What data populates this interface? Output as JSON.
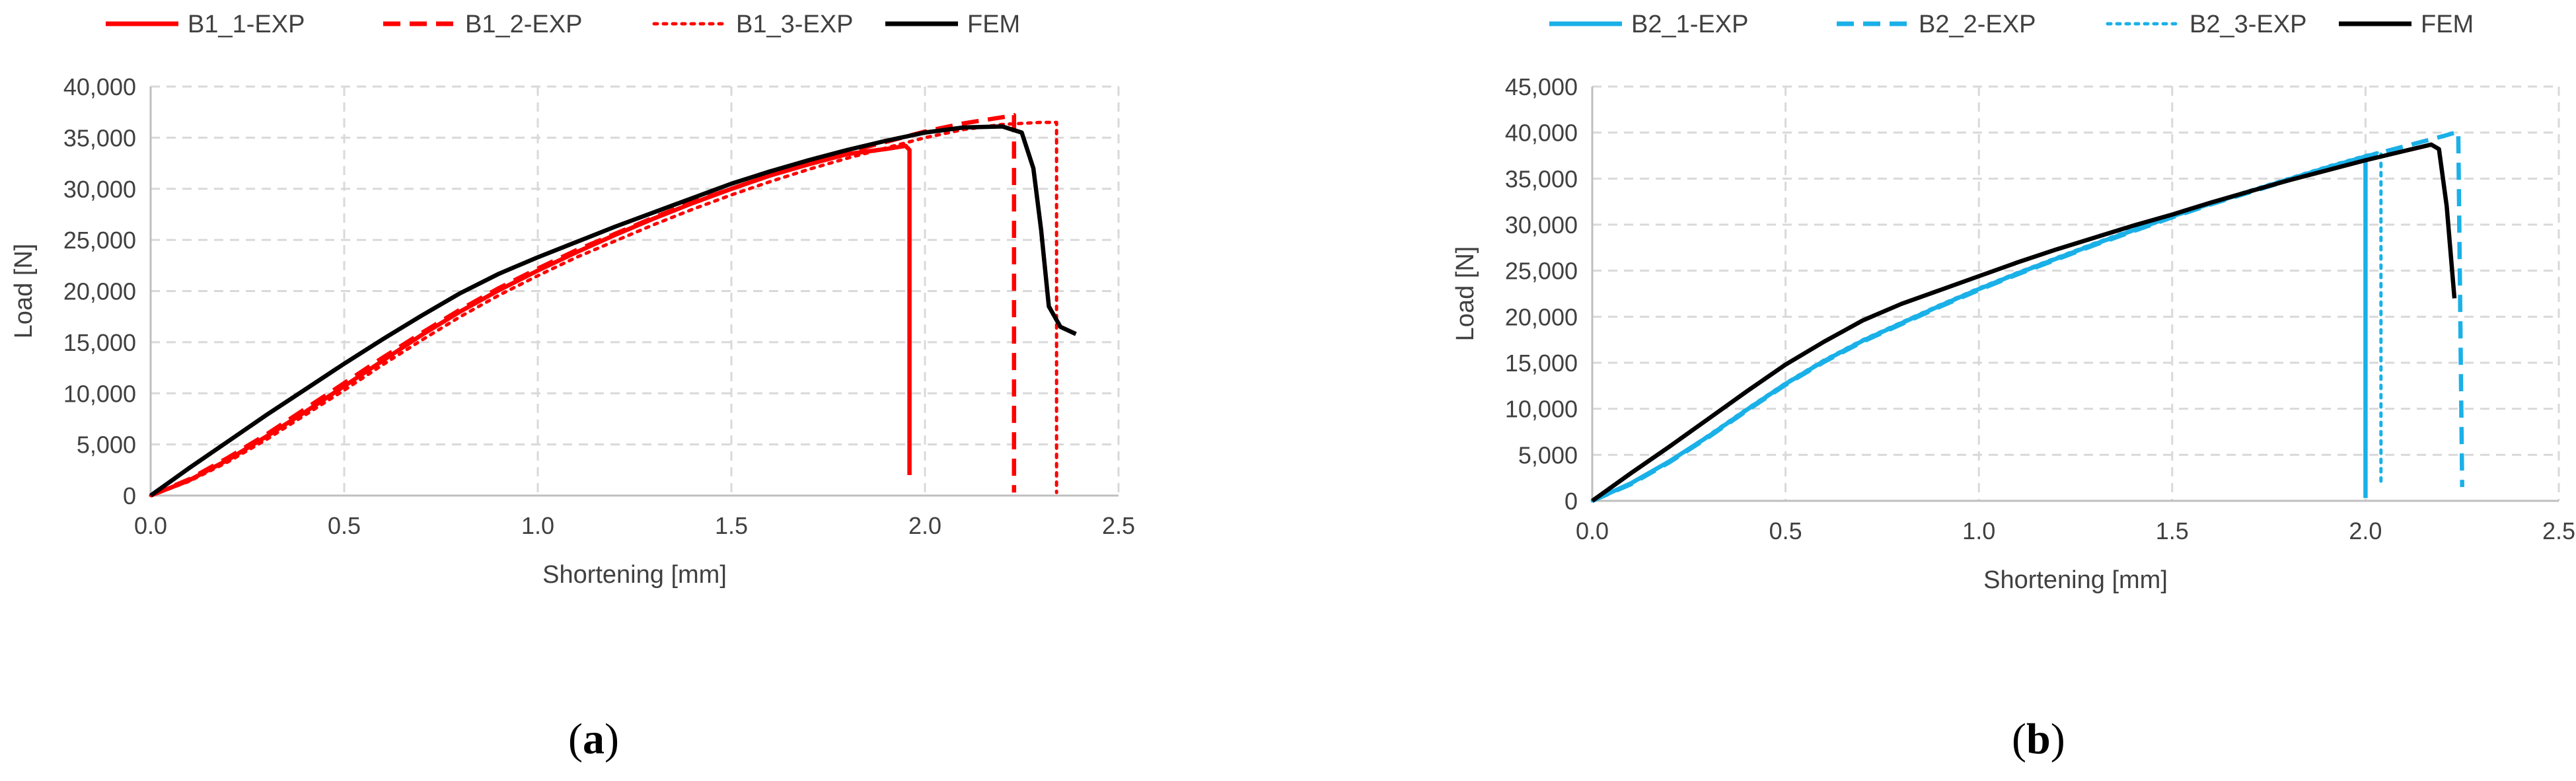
{
  "chart_data": [
    {
      "type": "line",
      "panel_label": "a",
      "xlabel": "Shortening [mm]",
      "ylabel": "Load [N]",
      "xlim": [
        0,
        2.5
      ],
      "ylim": [
        0,
        40000
      ],
      "xticks": [
        0,
        0.5,
        1.0,
        1.5,
        2.0,
        2.5
      ],
      "xtick_labels": [
        "0.0",
        "0.5",
        "1.0",
        "1.5",
        "2.0",
        "2.5"
      ],
      "yticks": [
        0,
        5000,
        10000,
        15000,
        20000,
        25000,
        30000,
        35000,
        40000
      ],
      "ytick_labels": [
        "0",
        "5,000",
        "10,000",
        "15,000",
        "20,000",
        "25,000",
        "30,000",
        "35,000",
        "40,000"
      ],
      "grid": true,
      "legend_position": "top",
      "series": [
        {
          "name": "B1_1-EXP",
          "color": "#ff0000",
          "style": "solid",
          "x": [
            0,
            0.1,
            0.2,
            0.3,
            0.4,
            0.5,
            0.6,
            0.7,
            0.8,
            0.9,
            1.0,
            1.1,
            1.2,
            1.3,
            1.4,
            1.5,
            1.6,
            1.7,
            1.8,
            1.9,
            1.95,
            1.96,
            1.96
          ],
          "y": [
            0,
            1500,
            3500,
            5800,
            8200,
            10700,
            13200,
            15700,
            18000,
            20100,
            22000,
            23800,
            25500,
            27100,
            28600,
            30000,
            31300,
            32400,
            33400,
            33900,
            34200,
            33800,
            2000
          ]
        },
        {
          "name": "B1_2-EXP",
          "color": "#ff0000",
          "style": "dashed",
          "x": [
            0,
            0.1,
            0.2,
            0.3,
            0.4,
            0.5,
            0.6,
            0.7,
            0.8,
            0.9,
            1.0,
            1.1,
            1.2,
            1.3,
            1.4,
            1.5,
            1.6,
            1.7,
            1.8,
            1.9,
            2.0,
            2.1,
            2.2,
            2.23,
            2.23
          ],
          "y": [
            0,
            1600,
            3700,
            6000,
            8500,
            11000,
            13500,
            15900,
            18200,
            20300,
            22200,
            24000,
            25600,
            27200,
            28700,
            30000,
            31300,
            32500,
            33600,
            34600,
            35600,
            36400,
            37000,
            37200,
            300
          ]
        },
        {
          "name": "B1_3-EXP",
          "color": "#ff0000",
          "style": "dotted",
          "x": [
            0,
            0.1,
            0.2,
            0.3,
            0.4,
            0.5,
            0.6,
            0.7,
            0.8,
            0.9,
            1.0,
            1.1,
            1.2,
            1.3,
            1.4,
            1.5,
            1.6,
            1.7,
            1.8,
            1.9,
            2.0,
            2.1,
            2.2,
            2.3,
            2.34,
            2.34
          ],
          "y": [
            0,
            1400,
            3300,
            5500,
            7900,
            10300,
            12800,
            15200,
            17500,
            19600,
            21500,
            23300,
            24900,
            26500,
            28000,
            29400,
            30700,
            31900,
            33000,
            34000,
            35000,
            35800,
            36300,
            36500,
            36500,
            300
          ]
        },
        {
          "name": "FEM",
          "color": "#000000",
          "style": "solid",
          "x": [
            0,
            0.1,
            0.2,
            0.3,
            0.4,
            0.5,
            0.6,
            0.7,
            0.8,
            0.9,
            1.0,
            1.1,
            1.2,
            1.3,
            1.4,
            1.5,
            1.6,
            1.7,
            1.8,
            1.9,
            2.0,
            2.1,
            2.2,
            2.25,
            2.28,
            2.3,
            2.32,
            2.35,
            2.39
          ],
          "y": [
            0,
            2700,
            5300,
            7900,
            10400,
            12900,
            15300,
            17600,
            19800,
            21700,
            23300,
            24800,
            26300,
            27700,
            29100,
            30500,
            31700,
            32800,
            33800,
            34700,
            35500,
            36000,
            36100,
            35500,
            32000,
            26000,
            18500,
            16500,
            15800
          ]
        }
      ]
    },
    {
      "type": "line",
      "panel_label": "b",
      "xlabel": "Shortening [mm]",
      "ylabel": "Load [N]",
      "xlim": [
        0,
        2.5
      ],
      "ylim": [
        0,
        45000
      ],
      "xticks": [
        0,
        0.5,
        1.0,
        1.5,
        2.0,
        2.5
      ],
      "xtick_labels": [
        "0.0",
        "0.5",
        "1.0",
        "1.5",
        "2.0",
        "2.5"
      ],
      "yticks": [
        0,
        5000,
        10000,
        15000,
        20000,
        25000,
        30000,
        35000,
        40000,
        45000
      ],
      "ytick_labels": [
        "0",
        "5,000",
        "10,000",
        "15,000",
        "20,000",
        "25,000",
        "30,000",
        "35,000",
        "40,000",
        "45,000"
      ],
      "grid": true,
      "legend_position": "top",
      "series": [
        {
          "name": "B2_1-EXP",
          "color": "#1ab0e8",
          "style": "solid",
          "x": [
            0,
            0.1,
            0.2,
            0.3,
            0.4,
            0.5,
            0.6,
            0.7,
            0.8,
            0.9,
            1.0,
            1.1,
            1.2,
            1.3,
            1.4,
            1.5,
            1.6,
            1.7,
            1.8,
            1.9,
            2.0,
            2.0
          ],
          "y": [
            0,
            1900,
            4300,
            7000,
            9900,
            12700,
            15200,
            17400,
            19300,
            21200,
            23000,
            24700,
            26300,
            27900,
            29400,
            30900,
            32300,
            33600,
            34900,
            36200,
            37400,
            300
          ]
        },
        {
          "name": "B2_2-EXP",
          "color": "#1ab0e8",
          "style": "dashed",
          "x": [
            0,
            0.1,
            0.2,
            0.3,
            0.4,
            0.5,
            0.6,
            0.7,
            0.8,
            0.9,
            1.0,
            1.1,
            1.2,
            1.3,
            1.4,
            1.5,
            1.6,
            1.7,
            1.8,
            1.9,
            2.0,
            2.1,
            2.2,
            2.24,
            2.25
          ],
          "y": [
            0,
            1800,
            4200,
            6900,
            9800,
            12600,
            15100,
            17300,
            19200,
            21100,
            22900,
            24600,
            26200,
            27800,
            29300,
            30800,
            32200,
            33500,
            34800,
            36100,
            37400,
            38500,
            39600,
            40100,
            1500
          ]
        },
        {
          "name": "B2_3-EXP",
          "color": "#1ab0e8",
          "style": "dotted",
          "x": [
            0,
            0.1,
            0.2,
            0.3,
            0.4,
            0.5,
            0.6,
            0.7,
            0.8,
            0.9,
            1.0,
            1.1,
            1.2,
            1.3,
            1.4,
            1.5,
            1.6,
            1.7,
            1.8,
            1.9,
            2.0,
            2.04,
            2.04
          ],
          "y": [
            0,
            1900,
            4300,
            7100,
            10000,
            12800,
            15300,
            17500,
            19400,
            21300,
            23100,
            24800,
            26400,
            28000,
            29500,
            31000,
            32400,
            33700,
            35000,
            36300,
            37500,
            37900,
            1500
          ]
        },
        {
          "name": "FEM",
          "color": "#000000",
          "style": "solid",
          "x": [
            0,
            0.1,
            0.2,
            0.3,
            0.4,
            0.5,
            0.6,
            0.7,
            0.8,
            0.9,
            1.0,
            1.1,
            1.2,
            1.3,
            1.4,
            1.5,
            1.6,
            1.7,
            1.8,
            1.9,
            2.0,
            2.1,
            2.17,
            2.19,
            2.21,
            2.23
          ],
          "y": [
            0,
            3000,
            5900,
            8900,
            11900,
            14800,
            17300,
            19600,
            21400,
            22900,
            24400,
            25900,
            27300,
            28600,
            29900,
            31100,
            32400,
            33600,
            34800,
            35900,
            37000,
            38000,
            38700,
            38200,
            32000,
            22000
          ]
        }
      ]
    }
  ]
}
